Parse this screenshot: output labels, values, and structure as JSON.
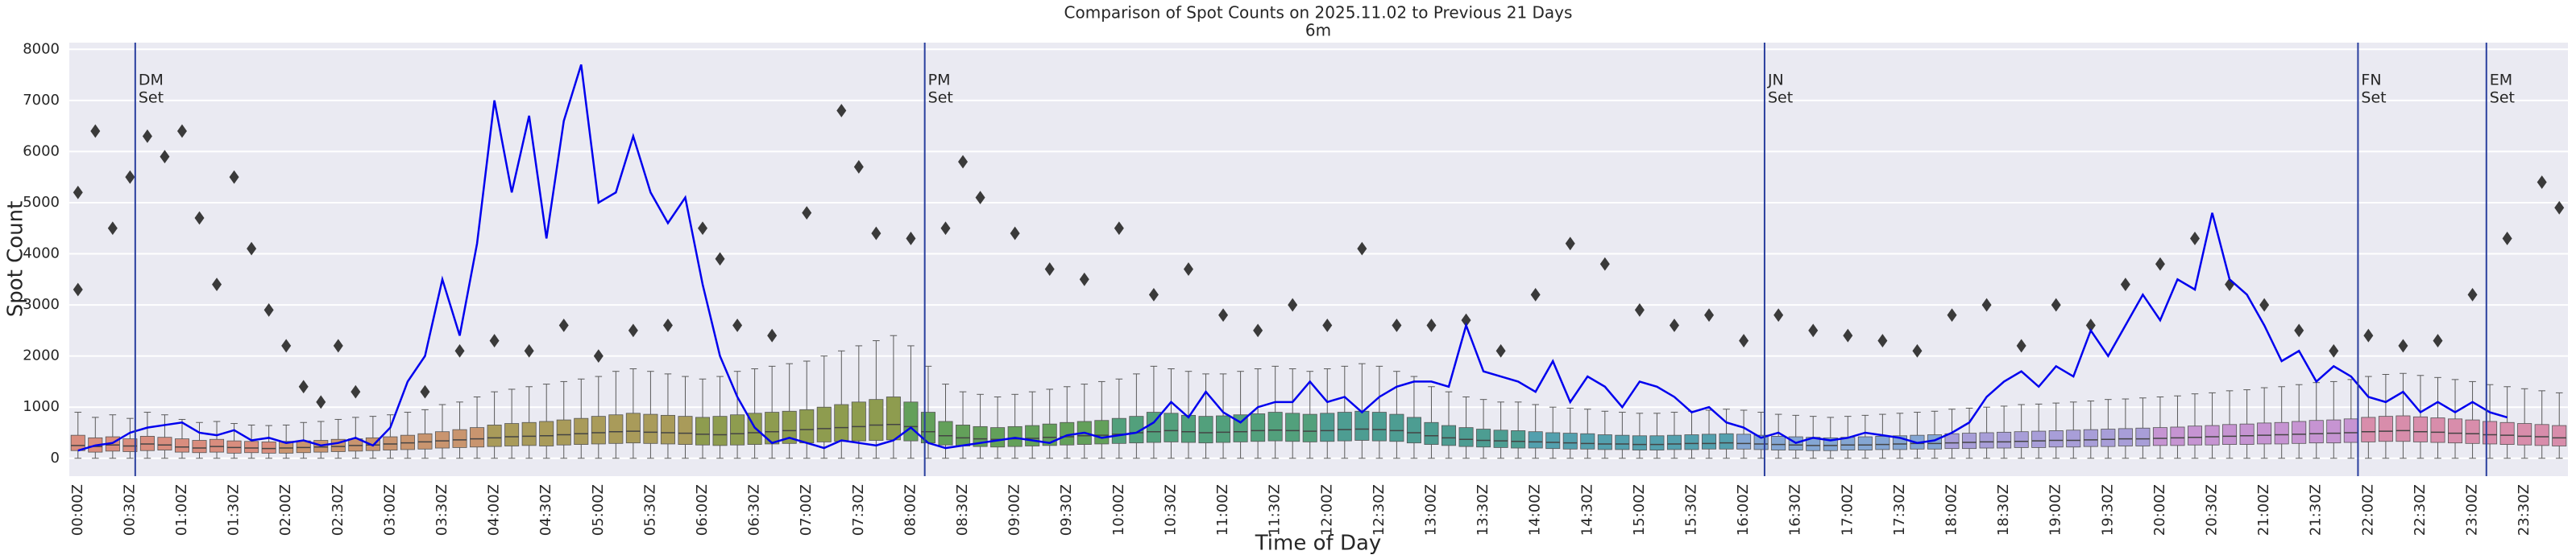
{
  "chart_data": {
    "type": "box",
    "title": "Comparison of Spot Counts on 2025.11.02 to Previous 21 Days",
    "subtitle": "6m",
    "x_label": "Time of Day",
    "y_label": "Spot Count",
    "ylim": [
      -350,
      8130
    ],
    "yticks": [
      0,
      1000,
      2000,
      3000,
      4000,
      5000,
      6000,
      7000,
      8000
    ],
    "grid": true,
    "background": "#eaeaf2",
    "categories": [
      "00:00Z",
      null,
      null,
      "00:30Z",
      null,
      null,
      "01:00Z",
      null,
      null,
      "01:30Z",
      null,
      null,
      "02:00Z",
      null,
      null,
      "02:30Z",
      null,
      null,
      "03:00Z",
      null,
      null,
      "03:30Z",
      null,
      null,
      "04:00Z",
      null,
      null,
      "04:30Z",
      null,
      null,
      "05:00Z",
      null,
      null,
      "05:30Z",
      null,
      null,
      "06:00Z",
      null,
      null,
      "06:30Z",
      null,
      null,
      "07:00Z",
      null,
      null,
      "07:30Z",
      null,
      null,
      "08:00Z",
      null,
      null,
      "08:30Z",
      null,
      null,
      "09:00Z",
      null,
      null,
      "09:30Z",
      null,
      null,
      "10:00Z",
      null,
      null,
      "10:30Z",
      null,
      null,
      "11:00Z",
      null,
      null,
      "11:30Z",
      null,
      null,
      "12:00Z",
      null,
      null,
      "12:30Z",
      null,
      null,
      "13:00Z",
      null,
      null,
      "13:30Z",
      null,
      null,
      "14:00Z",
      null,
      null,
      "14:30Z",
      null,
      null,
      "15:00Z",
      null,
      null,
      "15:30Z",
      null,
      null,
      "16:00Z",
      null,
      null,
      "16:30Z",
      null,
      null,
      "17:00Z",
      null,
      null,
      "17:30Z",
      null,
      null,
      "18:00Z",
      null,
      null,
      "18:30Z",
      null,
      null,
      "19:00Z",
      null,
      null,
      "19:30Z",
      null,
      null,
      "20:00Z",
      null,
      null,
      "20:30Z",
      null,
      null,
      "21:00Z",
      null,
      null,
      "21:30Z",
      null,
      null,
      "22:00Z",
      null,
      null,
      "22:30Z",
      null,
      null,
      "23:00Z",
      null,
      null,
      "23:30Z",
      null,
      null
    ],
    "palette": [
      "#d98d7e",
      "#c9956f",
      "#a99b5a",
      "#8e9c4f",
      "#63a05a",
      "#52a07c",
      "#4d9d92",
      "#53a0ae",
      "#84a6d3",
      "#a89ed8",
      "#c694d2",
      "#d88dab"
    ],
    "boxes": [
      [
        0,
        150,
        250,
        450,
        900
      ],
      [
        0,
        120,
        230,
        400,
        800
      ],
      [
        0,
        140,
        260,
        420,
        850
      ],
      [
        0,
        130,
        240,
        380,
        780
      ],
      [
        0,
        150,
        280,
        430,
        900
      ],
      [
        0,
        160,
        260,
        410,
        850
      ],
      [
        0,
        120,
        220,
        380,
        760
      ],
      [
        0,
        110,
        200,
        350,
        700
      ],
      [
        0,
        120,
        230,
        370,
        720
      ],
      [
        0,
        100,
        210,
        340,
        680
      ],
      [
        0,
        110,
        200,
        330,
        650
      ],
      [
        0,
        100,
        190,
        320,
        640
      ],
      [
        0,
        100,
        200,
        330,
        650
      ],
      [
        0,
        110,
        210,
        340,
        700
      ],
      [
        0,
        120,
        220,
        350,
        720
      ],
      [
        0,
        130,
        230,
        370,
        760
      ],
      [
        0,
        140,
        250,
        380,
        800
      ],
      [
        0,
        150,
        260,
        400,
        820
      ],
      [
        0,
        160,
        280,
        420,
        850
      ],
      [
        0,
        170,
        300,
        450,
        900
      ],
      [
        0,
        180,
        320,
        480,
        950
      ],
      [
        0,
        200,
        340,
        520,
        1050
      ],
      [
        0,
        210,
        360,
        560,
        1100
      ],
      [
        0,
        220,
        380,
        600,
        1200
      ],
      [
        0,
        230,
        400,
        650,
        1300
      ],
      [
        0,
        240,
        420,
        680,
        1350
      ],
      [
        0,
        250,
        430,
        700,
        1400
      ],
      [
        0,
        240,
        440,
        720,
        1450
      ],
      [
        0,
        260,
        460,
        750,
        1500
      ],
      [
        0,
        270,
        480,
        780,
        1550
      ],
      [
        0,
        280,
        500,
        820,
        1600
      ],
      [
        0,
        290,
        520,
        850,
        1700
      ],
      [
        0,
        300,
        530,
        880,
        1750
      ],
      [
        0,
        290,
        510,
        860,
        1700
      ],
      [
        0,
        280,
        500,
        840,
        1650
      ],
      [
        0,
        270,
        490,
        820,
        1600
      ],
      [
        0,
        260,
        470,
        800,
        1550
      ],
      [
        0,
        250,
        460,
        820,
        1600
      ],
      [
        0,
        260,
        480,
        850,
        1700
      ],
      [
        0,
        270,
        500,
        880,
        1750
      ],
      [
        0,
        280,
        520,
        900,
        1800
      ],
      [
        0,
        290,
        540,
        920,
        1850
      ],
      [
        0,
        300,
        560,
        950,
        1900
      ],
      [
        0,
        320,
        580,
        1000,
        2000
      ],
      [
        0,
        330,
        600,
        1050,
        2100
      ],
      [
        0,
        340,
        620,
        1100,
        2200
      ],
      [
        0,
        350,
        650,
        1150,
        2300
      ],
      [
        0,
        360,
        660,
        1200,
        2400
      ],
      [
        0,
        340,
        620,
        1100,
        2200
      ],
      [
        0,
        300,
        520,
        900,
        1800
      ],
      [
        0,
        260,
        440,
        720,
        1450
      ],
      [
        0,
        240,
        400,
        650,
        1300
      ],
      [
        0,
        230,
        380,
        620,
        1250
      ],
      [
        0,
        220,
        370,
        600,
        1200
      ],
      [
        0,
        230,
        380,
        620,
        1250
      ],
      [
        0,
        240,
        390,
        640,
        1300
      ],
      [
        0,
        250,
        410,
        670,
        1350
      ],
      [
        0,
        260,
        420,
        700,
        1400
      ],
      [
        0,
        270,
        440,
        720,
        1450
      ],
      [
        0,
        280,
        450,
        740,
        1500
      ],
      [
        0,
        290,
        470,
        780,
        1550
      ],
      [
        0,
        300,
        500,
        820,
        1650
      ],
      [
        0,
        310,
        520,
        900,
        1800
      ],
      [
        0,
        320,
        540,
        880,
        1750
      ],
      [
        0,
        310,
        520,
        840,
        1700
      ],
      [
        0,
        300,
        500,
        820,
        1650
      ],
      [
        0,
        310,
        510,
        830,
        1650
      ],
      [
        0,
        320,
        520,
        850,
        1700
      ],
      [
        0,
        330,
        540,
        870,
        1750
      ],
      [
        0,
        340,
        550,
        900,
        1800
      ],
      [
        0,
        330,
        540,
        880,
        1750
      ],
      [
        0,
        320,
        530,
        860,
        1700
      ],
      [
        0,
        330,
        540,
        880,
        1750
      ],
      [
        0,
        340,
        560,
        900,
        1800
      ],
      [
        0,
        350,
        570,
        920,
        1850
      ],
      [
        0,
        340,
        560,
        900,
        1800
      ],
      [
        0,
        330,
        540,
        860,
        1700
      ],
      [
        0,
        300,
        500,
        800,
        1600
      ],
      [
        0,
        270,
        440,
        700,
        1400
      ],
      [
        0,
        250,
        400,
        640,
        1300
      ],
      [
        0,
        230,
        370,
        600,
        1200
      ],
      [
        0,
        220,
        350,
        570,
        1150
      ],
      [
        0,
        210,
        340,
        550,
        1100
      ],
      [
        0,
        200,
        330,
        540,
        1100
      ],
      [
        0,
        200,
        320,
        520,
        1050
      ],
      [
        0,
        190,
        310,
        500,
        1000
      ],
      [
        0,
        180,
        300,
        490,
        980
      ],
      [
        0,
        180,
        290,
        480,
        960
      ],
      [
        0,
        170,
        280,
        460,
        920
      ],
      [
        0,
        170,
        280,
        450,
        900
      ],
      [
        0,
        160,
        270,
        440,
        880
      ],
      [
        0,
        160,
        270,
        440,
        880
      ],
      [
        0,
        170,
        280,
        450,
        900
      ],
      [
        0,
        170,
        290,
        460,
        920
      ],
      [
        0,
        180,
        290,
        470,
        940
      ],
      [
        0,
        180,
        300,
        480,
        960
      ],
      [
        0,
        180,
        290,
        470,
        940
      ],
      [
        0,
        170,
        280,
        450,
        900
      ],
      [
        0,
        160,
        270,
        430,
        860
      ],
      [
        0,
        160,
        260,
        420,
        840
      ],
      [
        0,
        150,
        250,
        410,
        820
      ],
      [
        0,
        150,
        250,
        400,
        800
      ],
      [
        0,
        160,
        260,
        410,
        820
      ],
      [
        0,
        160,
        260,
        420,
        840
      ],
      [
        0,
        170,
        270,
        430,
        860
      ],
      [
        0,
        170,
        280,
        440,
        880
      ],
      [
        0,
        180,
        290,
        450,
        900
      ],
      [
        0,
        180,
        290,
        460,
        920
      ],
      [
        0,
        190,
        300,
        480,
        960
      ],
      [
        0,
        190,
        310,
        490,
        980
      ],
      [
        0,
        200,
        320,
        500,
        1000
      ],
      [
        0,
        200,
        320,
        510,
        1020
      ],
      [
        0,
        210,
        330,
        520,
        1050
      ],
      [
        0,
        210,
        340,
        530,
        1060
      ],
      [
        0,
        220,
        350,
        540,
        1080
      ],
      [
        0,
        220,
        350,
        550,
        1100
      ],
      [
        0,
        230,
        360,
        560,
        1120
      ],
      [
        0,
        230,
        370,
        570,
        1150
      ],
      [
        0,
        240,
        380,
        580,
        1160
      ],
      [
        0,
        240,
        380,
        590,
        1180
      ],
      [
        0,
        250,
        390,
        600,
        1200
      ],
      [
        0,
        250,
        400,
        610,
        1220
      ],
      [
        0,
        260,
        410,
        630,
        1260
      ],
      [
        0,
        260,
        420,
        640,
        1280
      ],
      [
        0,
        270,
        430,
        660,
        1320
      ],
      [
        0,
        270,
        440,
        670,
        1340
      ],
      [
        0,
        280,
        450,
        690,
        1380
      ],
      [
        0,
        280,
        460,
        700,
        1400
      ],
      [
        0,
        290,
        470,
        720,
        1440
      ],
      [
        0,
        300,
        480,
        740,
        1480
      ],
      [
        0,
        300,
        490,
        750,
        1500
      ],
      [
        0,
        310,
        500,
        770,
        1540
      ],
      [
        0,
        320,
        520,
        800,
        1600
      ],
      [
        0,
        330,
        530,
        820,
        1640
      ],
      [
        0,
        330,
        540,
        830,
        1660
      ],
      [
        0,
        320,
        520,
        810,
        1620
      ],
      [
        0,
        310,
        510,
        790,
        1580
      ],
      [
        0,
        300,
        490,
        770,
        1540
      ],
      [
        0,
        290,
        480,
        750,
        1500
      ],
      [
        0,
        280,
        460,
        720,
        1440
      ],
      [
        0,
        270,
        450,
        700,
        1400
      ],
      [
        0,
        260,
        430,
        680,
        1360
      ],
      [
        0,
        250,
        420,
        660,
        1320
      ],
      [
        0,
        240,
        400,
        640,
        1280
      ]
    ],
    "outliers": {
      "x": [
        0,
        0,
        1,
        2,
        3,
        4,
        5,
        6,
        7,
        8,
        9,
        10,
        11,
        12,
        13,
        14,
        15,
        16,
        20,
        22,
        24,
        26,
        28,
        30,
        32,
        34,
        36,
        37,
        38,
        40,
        42,
        44,
        45,
        46,
        48,
        50,
        51,
        52,
        54,
        56,
        58,
        60,
        62,
        64,
        66,
        68,
        70,
        72,
        74,
        76,
        78,
        80,
        82,
        84,
        86,
        88,
        90,
        92,
        94,
        96,
        98,
        100,
        102,
        104,
        106,
        108,
        110,
        112,
        114,
        116,
        118,
        120,
        122,
        124,
        126,
        128,
        130,
        132,
        134,
        136,
        138,
        140,
        142,
        143
      ],
      "y": [
        5200,
        3300,
        6400,
        4500,
        5500,
        6300,
        5900,
        6400,
        4700,
        3400,
        5500,
        4100,
        2900,
        2200,
        1400,
        1100,
        2200,
        1300,
        1300,
        2100,
        2300,
        2100,
        2600,
        2000,
        2500,
        2600,
        4500,
        3900,
        2600,
        2400,
        4800,
        6800,
        5700,
        4400,
        4300,
        4500,
        5800,
        5100,
        4400,
        3700,
        3500,
        4500,
        3200,
        3700,
        2800,
        2500,
        3000,
        2600,
        4100,
        2600,
        2600,
        2700,
        2100,
        3200,
        4200,
        3800,
        2900,
        2600,
        2800,
        2300,
        2800,
        2500,
        2400,
        2300,
        2100,
        2800,
        3000,
        2200,
        3000,
        2600,
        3400,
        3800,
        4300,
        3400,
        3000,
        2500,
        2100,
        2400,
        2200,
        2300,
        3200,
        4300,
        5400,
        4900
      ]
    },
    "outlier_color": "#3a3a3a",
    "line": {
      "color": "#0000ee",
      "values": [
        150,
        250,
        300,
        500,
        600,
        650,
        700,
        500,
        450,
        550,
        350,
        400,
        300,
        350,
        250,
        300,
        400,
        250,
        600,
        1500,
        2000,
        3500,
        2400,
        4200,
        7000,
        5200,
        6700,
        4300,
        6600,
        7700,
        5000,
        5200,
        6300,
        5200,
        4600,
        5100,
        3400,
        2000,
        1200,
        600,
        300,
        400,
        300,
        200,
        350,
        300,
        250,
        350,
        600,
        300,
        200,
        250,
        300,
        350,
        400,
        350,
        300,
        450,
        500,
        400,
        450,
        500,
        700,
        1100,
        800,
        1300,
        900,
        700,
        1000,
        1100,
        1100,
        1500,
        1100,
        1200,
        900,
        1200,
        1400,
        1500,
        1500,
        1400,
        2600,
        1700,
        1600,
        1500,
        1300,
        1900,
        1100,
        1600,
        1400,
        1000,
        1500,
        1400,
        1200,
        900,
        1000,
        700,
        600,
        400,
        500,
        300,
        400,
        350,
        400,
        500,
        450,
        400,
        300,
        350,
        500,
        700,
        1200,
        1500,
        1700,
        1400,
        1800,
        1600,
        2500,
        2000,
        2600,
        3200,
        2700,
        3500,
        3300,
        4800,
        3500,
        3200,
        2600,
        1900,
        2100,
        1500,
        1800,
        1600,
        1200,
        1100,
        1300,
        900,
        1100,
        900,
        1100,
        900,
        800,
        null,
        null,
        null
      ]
    },
    "event_color": "#2a3f9e",
    "events": [
      {
        "x": 3.3,
        "label": [
          "DM",
          "Set"
        ]
      },
      {
        "x": 48.8,
        "label": [
          "PM",
          "Set"
        ]
      },
      {
        "x": 97.2,
        "label": [
          "JN",
          "Set"
        ]
      },
      {
        "x": 131.4,
        "label": [
          "FN",
          "Set"
        ]
      },
      {
        "x": 138.8,
        "label": [
          "EM",
          "Set"
        ]
      }
    ]
  }
}
